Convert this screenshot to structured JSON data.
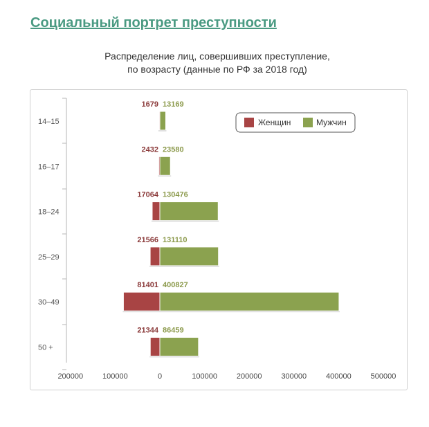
{
  "page": {
    "title": "Социальный портрет преступности",
    "subtitle_line1": "Распределение лиц, совершивших преступление,",
    "subtitle_line2": "по возрасту (данные по РФ за 2018 год)"
  },
  "chart_data": {
    "type": "bar",
    "orientation": "horizontal-diverging",
    "categories": [
      "14-15",
      "16-17",
      "18-24",
      "25-29",
      "30-49",
      "50 +"
    ],
    "series": [
      {
        "name": "Женщин",
        "values": [
          1679,
          2432,
          17064,
          21566,
          81401,
          21344
        ],
        "color": "#a84444"
      },
      {
        "name": "Мужчин",
        "values": [
          13169,
          23580,
          130476,
          131110,
          400827,
          86459
        ],
        "color": "#8ba24f"
      }
    ],
    "x_ticks": [
      "200000",
      "100000",
      "0",
      "100000",
      "200000",
      "300000",
      "400000",
      "500000"
    ],
    "xlim": [
      -200000,
      500000
    ],
    "legend_position": "top-right",
    "grid": false
  }
}
